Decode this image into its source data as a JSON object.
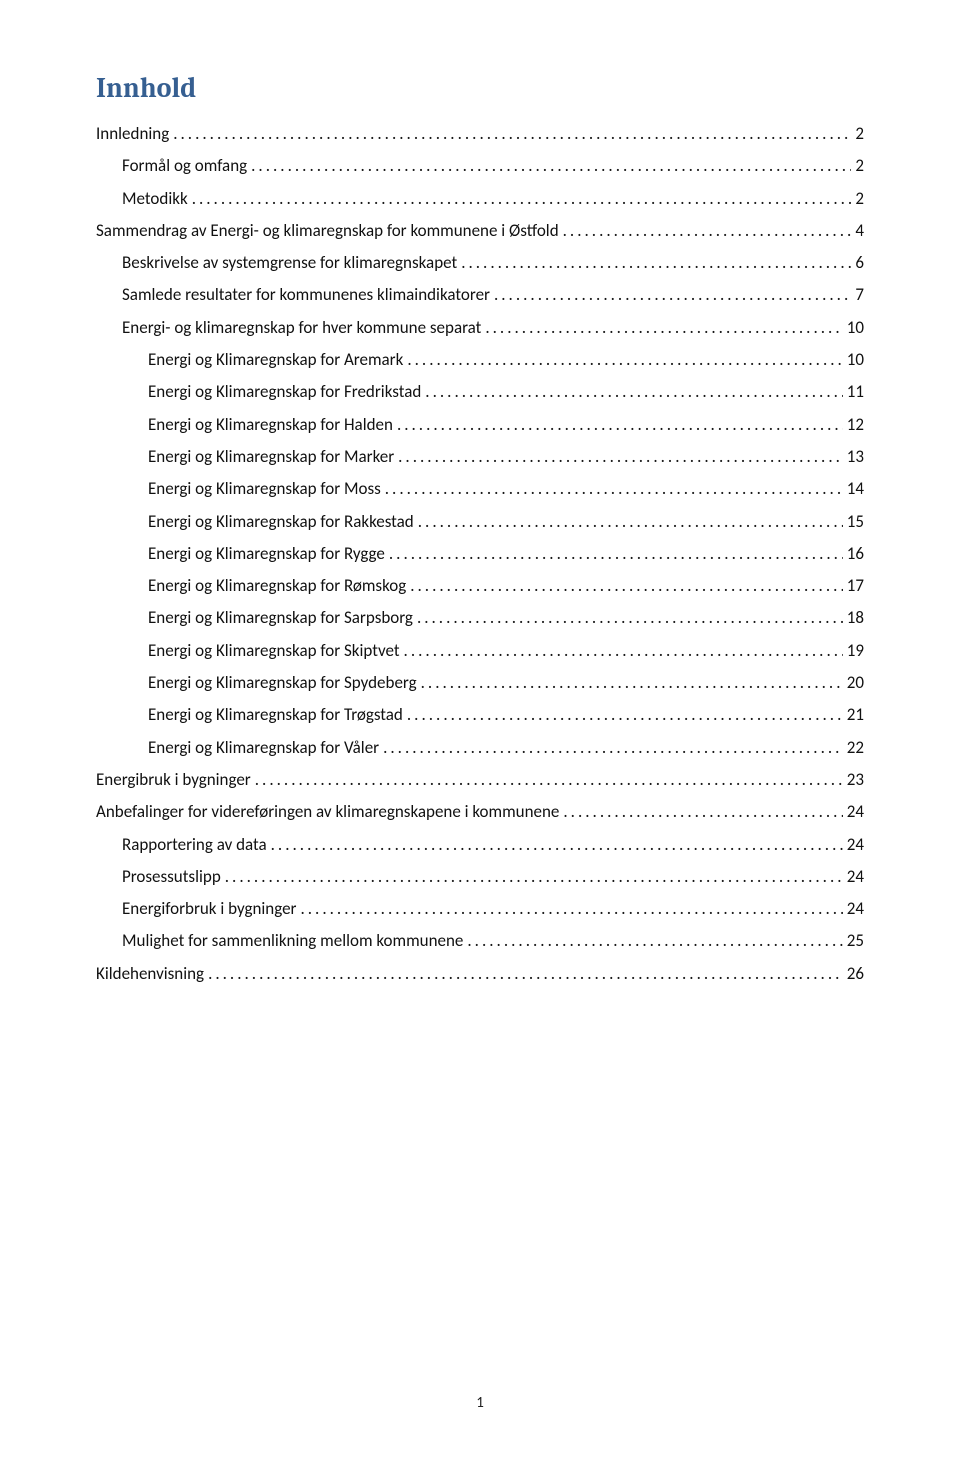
{
  "title": "Innhold",
  "title_color": "#365f91",
  "title_fontsize_pt": 21,
  "body_fontsize_pt": 13,
  "entries": [
    {
      "label": "Innledning",
      "page": "2",
      "indent": 0
    },
    {
      "label": "Formål og omfang",
      "page": "2",
      "indent": 1
    },
    {
      "label": "Metodikk",
      "page": "2",
      "indent": 1
    },
    {
      "label": "Sammendrag av Energi- og klimaregnskap for kommunene i Østfold",
      "page": "4",
      "indent": 0
    },
    {
      "label": "Beskrivelse av systemgrense for klimaregnskapet",
      "page": "6",
      "indent": 1
    },
    {
      "label": "Samlede resultater for kommunenes klimaindikatorer",
      "page": "7",
      "indent": 1
    },
    {
      "label": "Energi- og klimaregnskap for hver kommune separat",
      "page": "10",
      "indent": 1
    },
    {
      "label": "Energi og Klimaregnskap for Aremark",
      "page": "10",
      "indent": 2
    },
    {
      "label": "Energi og Klimaregnskap for Fredrikstad",
      "page": "11",
      "indent": 2
    },
    {
      "label": "Energi og Klimaregnskap for Halden",
      "page": "12",
      "indent": 2
    },
    {
      "label": "Energi og Klimaregnskap for Marker",
      "page": "13",
      "indent": 2
    },
    {
      "label": "Energi og Klimaregnskap for Moss",
      "page": "14",
      "indent": 2
    },
    {
      "label": "Energi og Klimaregnskap for Rakkestad",
      "page": "15",
      "indent": 2
    },
    {
      "label": "Energi og Klimaregnskap for Rygge",
      "page": "16",
      "indent": 2
    },
    {
      "label": "Energi og Klimaregnskap for Rømskog",
      "page": "17",
      "indent": 2
    },
    {
      "label": "Energi og Klimaregnskap for Sarpsborg",
      "page": "18",
      "indent": 2
    },
    {
      "label": "Energi og Klimaregnskap for Skiptvet",
      "page": "19",
      "indent": 2
    },
    {
      "label": "Energi og Klimaregnskap for Spydeberg",
      "page": "20",
      "indent": 2
    },
    {
      "label": "Energi og Klimaregnskap for Trøgstad",
      "page": "21",
      "indent": 2
    },
    {
      "label": "Energi og Klimaregnskap for Våler",
      "page": "22",
      "indent": 2
    },
    {
      "label": "Energibruk i bygninger",
      "page": "23",
      "indent": 0
    },
    {
      "label": "Anbefalinger for videreføringen av klimaregnskapene i kommunene",
      "page": "24",
      "indent": 0
    },
    {
      "label": "Rapportering av data",
      "page": "24",
      "indent": 1
    },
    {
      "label": "Prosessutslipp",
      "page": "24",
      "indent": 1
    },
    {
      "label": "Energiforbruk i bygninger",
      "page": "24",
      "indent": 1
    },
    {
      "label": "Mulighet for sammenlikning mellom kommunene",
      "page": "25",
      "indent": 1
    },
    {
      "label": "Kildehenvisning",
      "page": "26",
      "indent": 0
    }
  ],
  "page_number": "1"
}
